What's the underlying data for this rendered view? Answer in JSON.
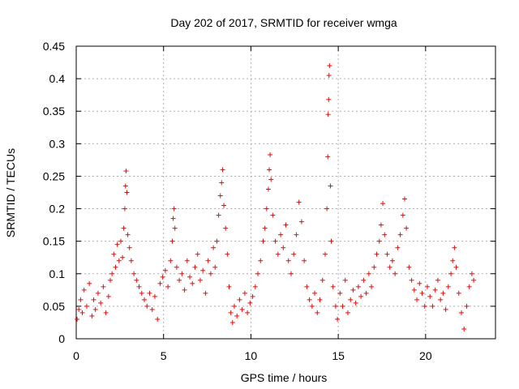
{
  "chart_data": {
    "type": "scatter",
    "title": "Day 202 of 2017, SRMTID for receiver wmga",
    "xlabel": "GPS time / hours",
    "ylabel": "SRMTID / TECUs",
    "xlim": [
      0,
      24
    ],
    "ylim": [
      0,
      0.45
    ],
    "xticks": [
      0,
      5,
      10,
      15,
      20
    ],
    "yticks": [
      0,
      0.05,
      0.1,
      0.15,
      0.2,
      0.25,
      0.3,
      0.35,
      0.4,
      0.45
    ],
    "marker": "+",
    "color": "#ff0000",
    "series": [
      {
        "name": "SRMTID",
        "points": [
          [
            0.05,
            0.03
          ],
          [
            0.15,
            0.045
          ],
          [
            0.25,
            0.06
          ],
          [
            0.35,
            0.04
          ],
          [
            0.45,
            0.075
          ],
          [
            0.6,
            0.05
          ],
          [
            0.75,
            0.085
          ],
          [
            0.9,
            0.035
          ],
          [
            1.0,
            0.06
          ],
          [
            1.1,
            0.045
          ],
          [
            1.25,
            0.07
          ],
          [
            1.4,
            0.055
          ],
          [
            1.55,
            0.08
          ],
          [
            1.7,
            0.04
          ],
          [
            1.85,
            0.065
          ],
          [
            1.95,
            0.09
          ],
          [
            2.05,
            0.1
          ],
          [
            2.15,
            0.13
          ],
          [
            2.25,
            0.11
          ],
          [
            2.35,
            0.145
          ],
          [
            2.45,
            0.12
          ],
          [
            2.55,
            0.15
          ],
          [
            2.65,
            0.125
          ],
          [
            2.72,
            0.17
          ],
          [
            2.78,
            0.2
          ],
          [
            2.82,
            0.235
          ],
          [
            2.85,
            0.258
          ],
          [
            2.9,
            0.225
          ],
          [
            2.95,
            0.16
          ],
          [
            3.05,
            0.14
          ],
          [
            3.15,
            0.12
          ],
          [
            3.3,
            0.1
          ],
          [
            3.45,
            0.09
          ],
          [
            3.6,
            0.08
          ],
          [
            3.75,
            0.07
          ],
          [
            3.9,
            0.06
          ],
          [
            4.05,
            0.05
          ],
          [
            4.2,
            0.07
          ],
          [
            4.35,
            0.045
          ],
          [
            4.5,
            0.065
          ],
          [
            4.65,
            0.03
          ],
          [
            4.8,
            0.085
          ],
          [
            4.95,
            0.095
          ],
          [
            5.1,
            0.105
          ],
          [
            5.25,
            0.08
          ],
          [
            5.4,
            0.12
          ],
          [
            5.5,
            0.15
          ],
          [
            5.55,
            0.185
          ],
          [
            5.6,
            0.2
          ],
          [
            5.65,
            0.17
          ],
          [
            5.75,
            0.11
          ],
          [
            5.9,
            0.09
          ],
          [
            6.05,
            0.1
          ],
          [
            6.2,
            0.075
          ],
          [
            6.35,
            0.12
          ],
          [
            6.5,
            0.095
          ],
          [
            6.65,
            0.085
          ],
          [
            6.8,
            0.11
          ],
          [
            6.95,
            0.13
          ],
          [
            7.1,
            0.09
          ],
          [
            7.25,
            0.105
          ],
          [
            7.4,
            0.07
          ],
          [
            7.55,
            0.12
          ],
          [
            7.7,
            0.1
          ],
          [
            7.85,
            0.14
          ],
          [
            7.95,
            0.11
          ],
          [
            8.05,
            0.15
          ],
          [
            8.15,
            0.19
          ],
          [
            8.25,
            0.22
          ],
          [
            8.32,
            0.24
          ],
          [
            8.38,
            0.26
          ],
          [
            8.45,
            0.205
          ],
          [
            8.55,
            0.17
          ],
          [
            8.65,
            0.13
          ],
          [
            8.75,
            0.08
          ],
          [
            8.85,
            0.04
          ],
          [
            8.95,
            0.025
          ],
          [
            9.05,
            0.05
          ],
          [
            9.2,
            0.035
          ],
          [
            9.35,
            0.06
          ],
          [
            9.5,
            0.045
          ],
          [
            9.65,
            0.07
          ],
          [
            9.8,
            0.04
          ],
          [
            9.95,
            0.055
          ],
          [
            10.1,
            0.065
          ],
          [
            10.25,
            0.08
          ],
          [
            10.4,
            0.1
          ],
          [
            10.55,
            0.12
          ],
          [
            10.7,
            0.15
          ],
          [
            10.8,
            0.17
          ],
          [
            10.9,
            0.2
          ],
          [
            11.0,
            0.23
          ],
          [
            11.05,
            0.26
          ],
          [
            11.1,
            0.283
          ],
          [
            11.15,
            0.245
          ],
          [
            11.25,
            0.19
          ],
          [
            11.4,
            0.15
          ],
          [
            11.55,
            0.13
          ],
          [
            11.7,
            0.16
          ],
          [
            11.85,
            0.14
          ],
          [
            12.0,
            0.175
          ],
          [
            12.15,
            0.12
          ],
          [
            12.3,
            0.1
          ],
          [
            12.45,
            0.13
          ],
          [
            12.6,
            0.16
          ],
          [
            12.75,
            0.21
          ],
          [
            12.9,
            0.18
          ],
          [
            13.05,
            0.12
          ],
          [
            13.2,
            0.08
          ],
          [
            13.35,
            0.06
          ],
          [
            13.5,
            0.05
          ],
          [
            13.65,
            0.07
          ],
          [
            13.8,
            0.04
          ],
          [
            13.95,
            0.06
          ],
          [
            14.1,
            0.09
          ],
          [
            14.25,
            0.13
          ],
          [
            14.35,
            0.2
          ],
          [
            14.4,
            0.28
          ],
          [
            14.42,
            0.345
          ],
          [
            14.45,
            0.368
          ],
          [
            14.47,
            0.405
          ],
          [
            14.5,
            0.42
          ],
          [
            14.55,
            0.235
          ],
          [
            14.6,
            0.15
          ],
          [
            14.7,
            0.08
          ],
          [
            14.85,
            0.05
          ],
          [
            14.95,
            0.03
          ],
          [
            15.1,
            0.07
          ],
          [
            15.25,
            0.05
          ],
          [
            15.4,
            0.09
          ],
          [
            15.55,
            0.04
          ],
          [
            15.7,
            0.06
          ],
          [
            15.85,
            0.075
          ],
          [
            16.0,
            0.055
          ],
          [
            16.15,
            0.08
          ],
          [
            16.3,
            0.065
          ],
          [
            16.45,
            0.09
          ],
          [
            16.6,
            0.07
          ],
          [
            16.75,
            0.1
          ],
          [
            16.9,
            0.08
          ],
          [
            17.05,
            0.11
          ],
          [
            17.2,
            0.13
          ],
          [
            17.35,
            0.15
          ],
          [
            17.45,
            0.175
          ],
          [
            17.55,
            0.208
          ],
          [
            17.65,
            0.16
          ],
          [
            17.8,
            0.13
          ],
          [
            17.95,
            0.11
          ],
          [
            18.1,
            0.12
          ],
          [
            18.25,
            0.1
          ],
          [
            18.4,
            0.14
          ],
          [
            18.55,
            0.16
          ],
          [
            18.7,
            0.19
          ],
          [
            18.8,
            0.215
          ],
          [
            18.9,
            0.17
          ],
          [
            19.05,
            0.11
          ],
          [
            19.2,
            0.09
          ],
          [
            19.35,
            0.075
          ],
          [
            19.5,
            0.06
          ],
          [
            19.65,
            0.085
          ],
          [
            19.8,
            0.07
          ],
          [
            19.95,
            0.05
          ],
          [
            20.1,
            0.08
          ],
          [
            20.25,
            0.065
          ],
          [
            20.4,
            0.05
          ],
          [
            20.55,
            0.075
          ],
          [
            20.7,
            0.09
          ],
          [
            20.85,
            0.06
          ],
          [
            21.0,
            0.07
          ],
          [
            21.15,
            0.045
          ],
          [
            21.3,
            0.08
          ],
          [
            21.45,
            0.1
          ],
          [
            21.55,
            0.12
          ],
          [
            21.65,
            0.14
          ],
          [
            21.75,
            0.11
          ],
          [
            21.9,
            0.07
          ],
          [
            22.05,
            0.04
          ],
          [
            22.2,
            0.015
          ],
          [
            22.35,
            0.05
          ],
          [
            22.5,
            0.08
          ],
          [
            22.65,
            0.1
          ],
          [
            22.75,
            0.09
          ]
        ]
      }
    ]
  }
}
